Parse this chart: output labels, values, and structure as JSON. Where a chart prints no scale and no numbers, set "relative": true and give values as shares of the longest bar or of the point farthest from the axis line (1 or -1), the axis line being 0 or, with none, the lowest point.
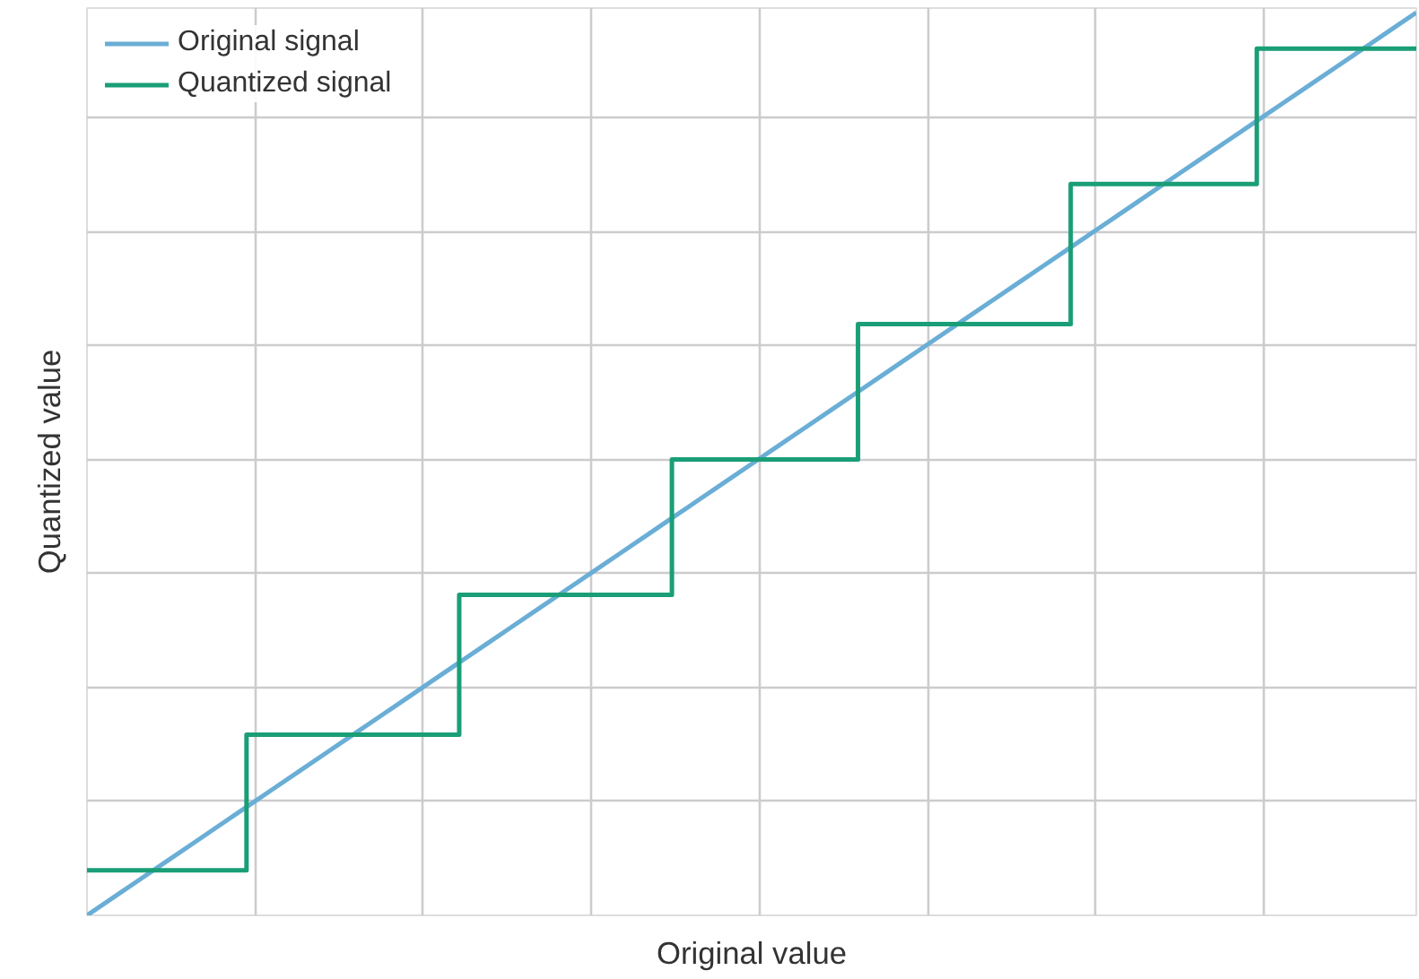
{
  "chart_data": {
    "type": "line",
    "xlabel": "Original value",
    "ylabel": "Quantized value",
    "relative": true,
    "grid": true,
    "legend": "top left",
    "tick_labels": false,
    "categories": [
      null,
      null,
      null,
      null,
      null,
      null,
      null,
      null,
      null,
      null,
      null,
      null,
      null,
      null,
      null,
      null,
      null,
      null,
      null,
      null,
      null,
      null,
      null,
      null,
      null,
      null,
      null,
      null,
      null,
      null,
      null,
      null,
      null,
      null,
      null,
      null,
      null,
      null,
      null,
      null,
      null,
      null,
      null,
      null,
      null,
      null,
      null,
      null,
      null,
      null,
      null
    ],
    "series": [
      {
        "name": "Original signal",
        "color": "#6aaed6",
        "values": [
          0,
          0.02,
          0.04,
          0.06,
          0.08,
          0.1,
          0.12,
          0.14,
          0.16,
          0.18,
          0.2,
          0.22,
          0.24,
          0.26,
          0.28,
          0.3,
          0.32,
          0.34,
          0.36,
          0.38,
          0.4,
          0.42,
          0.44,
          0.46,
          0.48,
          0.5,
          0.52,
          0.54,
          0.56,
          0.58,
          0.6,
          0.62,
          0.64,
          0.66,
          0.68,
          0.7,
          0.72,
          0.74,
          0.76,
          0.78,
          0.8,
          0.82,
          0.84,
          0.86,
          0.88,
          0.9,
          0.92,
          0.94,
          0.96,
          0.98,
          1
        ]
      },
      {
        "name": "Quantized signal",
        "color": "#1a9e77",
        "type": "step",
        "values": [
          0.05,
          0.05,
          0.05,
          0.05,
          0.05,
          0.05,
          0.2,
          0.2,
          0.2,
          0.2,
          0.2,
          0.2,
          0.2,
          0.2,
          0.355,
          0.355,
          0.355,
          0.355,
          0.355,
          0.355,
          0.355,
          0.355,
          0.505,
          0.505,
          0.505,
          0.505,
          0.505,
          0.505,
          0.505,
          0.655,
          0.655,
          0.655,
          0.655,
          0.655,
          0.655,
          0.655,
          0.655,
          0.81,
          0.81,
          0.81,
          0.81,
          0.81,
          0.81,
          0.81,
          0.96,
          0.96,
          0.96,
          0.96,
          0.96,
          0.96,
          0.96
        ]
      }
    ]
  }
}
